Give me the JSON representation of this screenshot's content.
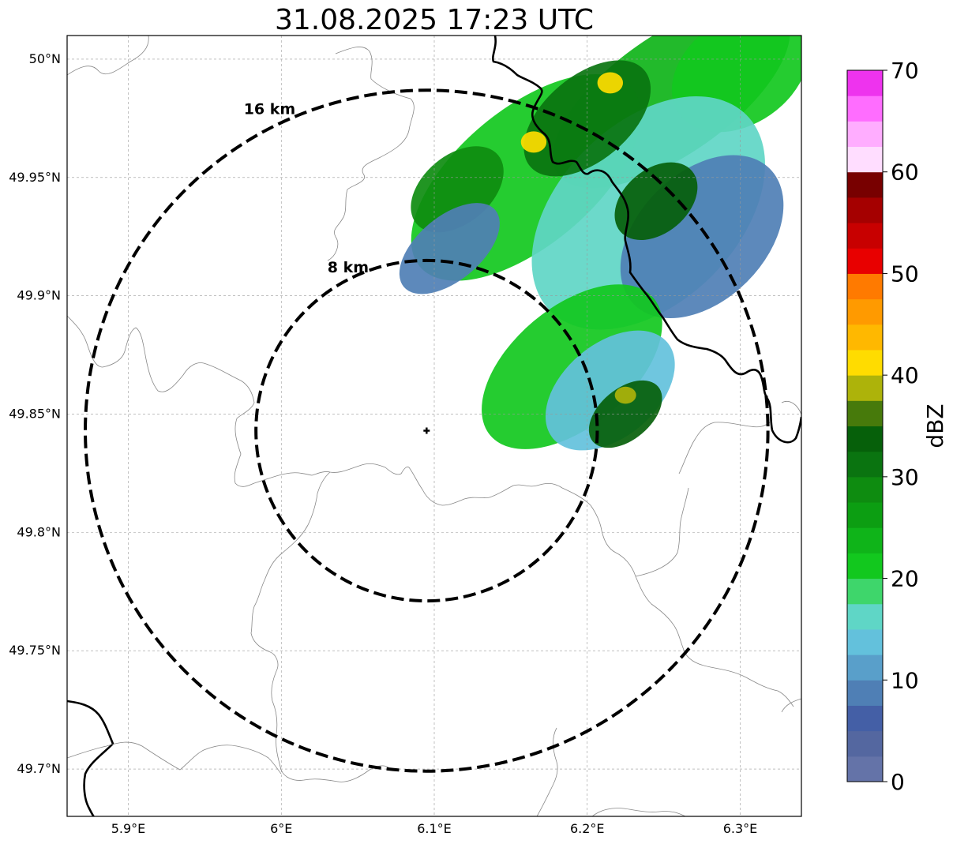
{
  "title": "31.08.2025 17:23 UTC",
  "map": {
    "extent": {
      "lon": [
        5.86,
        6.34
      ],
      "lat": [
        49.68,
        50.01
      ]
    },
    "grid": true,
    "lat_ticks": [
      {
        "value": 50.0,
        "label": "50°N"
      },
      {
        "value": 49.95,
        "label": "49.95°N"
      },
      {
        "value": 49.9,
        "label": "49.9°N"
      },
      {
        "value": 49.85,
        "label": "49.85°N"
      },
      {
        "value": 49.8,
        "label": "49.8°N"
      },
      {
        "value": 49.75,
        "label": "49.75°N"
      },
      {
        "value": 49.7,
        "label": "49.7°N"
      }
    ],
    "lon_ticks": [
      {
        "value": 5.9,
        "label": "5.9°E"
      },
      {
        "value": 6.0,
        "label": "6°E"
      },
      {
        "value": 6.1,
        "label": "6.1°E"
      },
      {
        "value": 6.2,
        "label": "6.2°E"
      },
      {
        "value": 6.3,
        "label": "6.3°E"
      }
    ],
    "radar_site": {
      "lon": 6.095,
      "lat": 49.843
    },
    "range_rings": [
      {
        "radius_km": 8,
        "label": "8 km"
      },
      {
        "radius_km": 16,
        "label": "16 km"
      }
    ],
    "echo_cells": [
      {
        "lon": 6.255,
        "lat": 49.985,
        "rx_km": 6.5,
        "ry_km": 2.8,
        "rot": -35,
        "dbz": 24
      },
      {
        "lon": 6.3,
        "lat": 49.995,
        "rx_km": 3.5,
        "ry_km": 2.5,
        "rot": -35,
        "dbz": 22
      },
      {
        "lon": 6.16,
        "lat": 49.95,
        "rx_km": 6.5,
        "ry_km": 3.2,
        "rot": -40,
        "dbz": 20
      },
      {
        "lon": 6.24,
        "lat": 49.935,
        "rx_km": 6.5,
        "ry_km": 4.2,
        "rot": -45,
        "dbz": 15
      },
      {
        "lon": 6.275,
        "lat": 49.925,
        "rx_km": 4.5,
        "ry_km": 3.0,
        "rot": -45,
        "dbz": 8
      },
      {
        "lon": 6.19,
        "lat": 49.87,
        "rx_km": 5.0,
        "ry_km": 2.8,
        "rot": -40,
        "dbz": 22
      },
      {
        "lon": 6.215,
        "lat": 49.86,
        "rx_km": 3.5,
        "ry_km": 2.2,
        "rot": -40,
        "dbz": 14
      },
      {
        "lon": 6.2,
        "lat": 49.975,
        "rx_km": 3.5,
        "ry_km": 2.0,
        "rot": -40,
        "dbz": 31
      },
      {
        "lon": 6.245,
        "lat": 49.94,
        "rx_km": 2.2,
        "ry_km": 1.5,
        "rot": -40,
        "dbz": 33
      },
      {
        "lon": 6.225,
        "lat": 49.85,
        "rx_km": 2.0,
        "ry_km": 1.2,
        "rot": -40,
        "dbz": 34
      },
      {
        "lon": 6.115,
        "lat": 49.945,
        "rx_km": 2.5,
        "ry_km": 1.6,
        "rot": -40,
        "dbz": 28
      },
      {
        "lon": 6.11,
        "lat": 49.92,
        "rx_km": 2.8,
        "ry_km": 1.5,
        "rot": -40,
        "dbz": 8
      },
      {
        "lon": 6.215,
        "lat": 49.99,
        "rx_km": 0.6,
        "ry_km": 0.5,
        "rot": 0,
        "dbz": 40
      },
      {
        "lon": 6.165,
        "lat": 49.965,
        "rx_km": 0.6,
        "ry_km": 0.5,
        "rot": 0,
        "dbz": 41
      },
      {
        "lon": 6.225,
        "lat": 49.858,
        "rx_km": 0.5,
        "ry_km": 0.4,
        "rot": 0,
        "dbz": 39
      }
    ]
  },
  "colorbar": {
    "label": "dBZ",
    "min": 0,
    "max": 70,
    "step": 2.5,
    "ticks": [
      0,
      10,
      20,
      30,
      40,
      50,
      60,
      70
    ],
    "colors": [
      "#6473a8",
      "#5467a0",
      "#445fa6",
      "#4f7fb5",
      "#599fca",
      "#63c1dc",
      "#5fd6c6",
      "#3ed66b",
      "#12c81e",
      "#0fb419",
      "#0c9e12",
      "#0e8c10",
      "#0a7410",
      "#06600a",
      "#477a0b",
      "#adb30a",
      "#ffdc00",
      "#ffb800",
      "#ff9a00",
      "#ff7a00",
      "#e80000",
      "#c80000",
      "#a50000",
      "#780000",
      "#ffddff",
      "#ffadff",
      "#ff6dff",
      "#ee33ee"
    ]
  }
}
